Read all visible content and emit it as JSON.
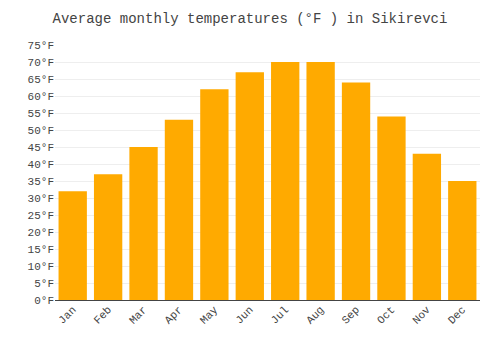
{
  "chart_data": {
    "type": "bar",
    "title": "Average monthly temperatures (°F ) in Sikirevci",
    "categories": [
      "Jan",
      "Feb",
      "Mar",
      "Apr",
      "May",
      "Jun",
      "Jul",
      "Aug",
      "Sep",
      "Oct",
      "Nov",
      "Dec"
    ],
    "values": [
      32,
      37,
      45,
      53,
      62,
      67,
      70,
      70,
      64,
      54,
      43,
      35
    ],
    "color": "#FFAA00",
    "ylim": [
      0,
      75
    ],
    "yticks": [
      {
        "value": 0,
        "label": "0°F"
      },
      {
        "value": 5,
        "label": "5°F"
      },
      {
        "value": 10,
        "label": "10°F"
      },
      {
        "value": 15,
        "label": "15°F"
      },
      {
        "value": 20,
        "label": "20°F"
      },
      {
        "value": 25,
        "label": "25°F"
      },
      {
        "value": 30,
        "label": "30°F"
      },
      {
        "value": 35,
        "label": "35°F"
      },
      {
        "value": 40,
        "label": "40°F"
      },
      {
        "value": 45,
        "label": "45°F"
      },
      {
        "value": 50,
        "label": "50°F"
      },
      {
        "value": 55,
        "label": "55°F"
      },
      {
        "value": 60,
        "label": "60°F"
      },
      {
        "value": 65,
        "label": "65°F"
      },
      {
        "value": 70,
        "label": "70°F"
      },
      {
        "value": 75,
        "label": "75°F"
      }
    ],
    "grid": true
  }
}
